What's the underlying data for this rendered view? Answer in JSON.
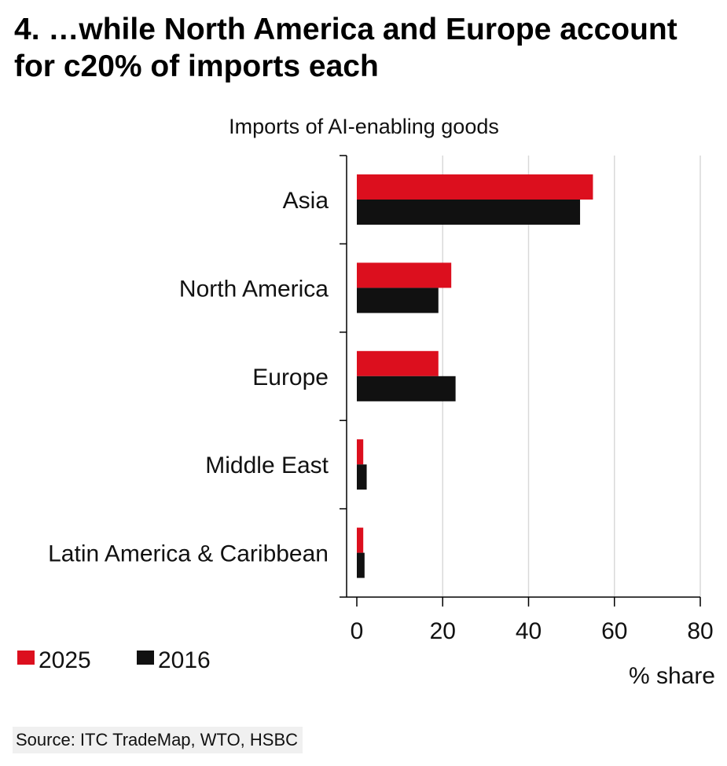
{
  "title": "4. …while North America and Europe account for c20% of imports each",
  "source": "Source: ITC TradeMap, WTO, HSBC",
  "colors": {
    "s2025": "#dc0f1e",
    "s2016": "#111111",
    "grid": "#d9d9d9",
    "axis": "#000000"
  },
  "chart_data": {
    "type": "bar",
    "orientation": "horizontal",
    "title": "Imports of AI-enabling goods",
    "categories": [
      "Asia",
      "North America",
      "Europe",
      "Middle East",
      "Latin America & Caribbean"
    ],
    "series": [
      {
        "name": "2025",
        "values": [
          55,
          22,
          19,
          1.5,
          1.5
        ]
      },
      {
        "name": "2016",
        "values": [
          52,
          19,
          23,
          2.3,
          1.8
        ]
      }
    ],
    "xlim": [
      0,
      80
    ],
    "xticks": [
      0,
      20,
      40,
      60,
      80
    ],
    "xlabel": "% share",
    "grid": true,
    "legend": "bottom-left"
  }
}
